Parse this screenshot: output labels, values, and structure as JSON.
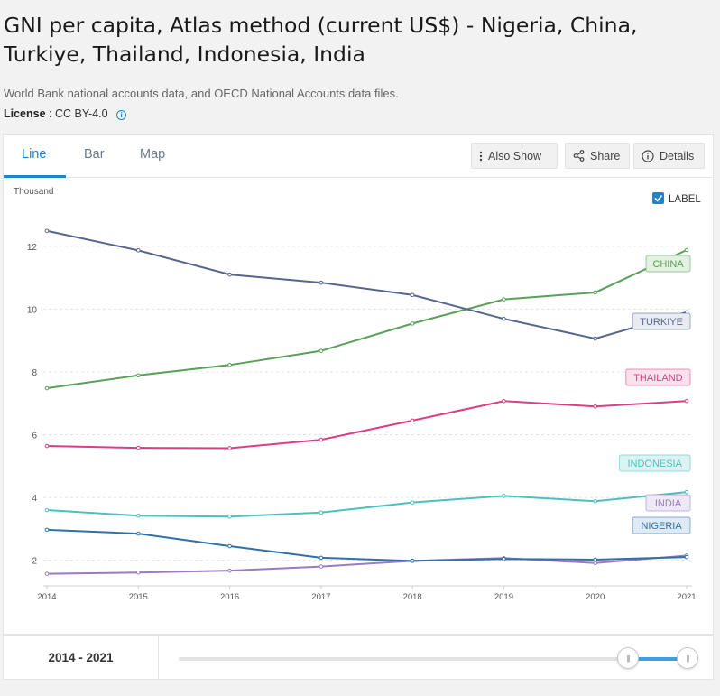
{
  "page": {
    "title": "GNI per capita, Atlas method (current US$) - Nigeria, China, Turkiye, Thailand, Indonesia, India",
    "source": "World Bank national accounts data, and OECD National Accounts data files.",
    "license_label": "License",
    "license_value": ": CC BY-4.0"
  },
  "tabs": {
    "line": "Line",
    "bar": "Bar",
    "map": "Map"
  },
  "toolbar": {
    "also_show": "Also Show",
    "share": "Share",
    "details": "Details"
  },
  "label_toggle": {
    "text": "LABEL",
    "checked": true
  },
  "footer": {
    "range_text": "2014 - 2021",
    "range_start": 2014,
    "range_end": 2021
  },
  "colors": {
    "accent": "#1a86d0"
  },
  "chart_data": {
    "type": "line",
    "ylabel": "Thousand",
    "x": [
      2014,
      2015,
      2016,
      2017,
      2018,
      2019,
      2020,
      2021
    ],
    "yticks": [
      2,
      4,
      6,
      8,
      10,
      12
    ],
    "ylim": [
      1.3,
      12.8
    ],
    "grid": true,
    "series": [
      {
        "name": "CHINA",
        "color": "#5aa05a",
        "label_bg": "#e3f1e0",
        "values": [
          7.48,
          7.89,
          8.22,
          8.67,
          9.54,
          10.31,
          10.53,
          11.88
        ]
      },
      {
        "name": "TURKIYE",
        "color": "#56678f",
        "label_bg": "#e8ebf2",
        "values": [
          12.49,
          11.87,
          11.1,
          10.84,
          10.45,
          9.69,
          9.06,
          9.9
        ]
      },
      {
        "name": "THAILAND",
        "color": "#d93f86",
        "label_bg": "#fbe1ec",
        "values": [
          5.64,
          5.58,
          5.57,
          5.84,
          6.45,
          7.07,
          6.9,
          7.07
        ]
      },
      {
        "name": "INDONESIA",
        "color": "#4dbfbf",
        "label_bg": "#ddf3f3",
        "values": [
          3.6,
          3.42,
          3.39,
          3.52,
          3.84,
          4.05,
          3.88,
          4.17
        ]
      },
      {
        "name": "INDIA",
        "color": "#9a7bc4",
        "label_bg": "#efe9f6",
        "values": [
          1.57,
          1.61,
          1.67,
          1.8,
          1.98,
          2.07,
          1.91,
          2.15
        ]
      },
      {
        "name": "NIGERIA",
        "color": "#2e72a8",
        "label_bg": "#dfeaf4",
        "values": [
          2.97,
          2.85,
          2.45,
          2.08,
          1.98,
          2.04,
          2.02,
          2.1
        ]
      }
    ]
  }
}
